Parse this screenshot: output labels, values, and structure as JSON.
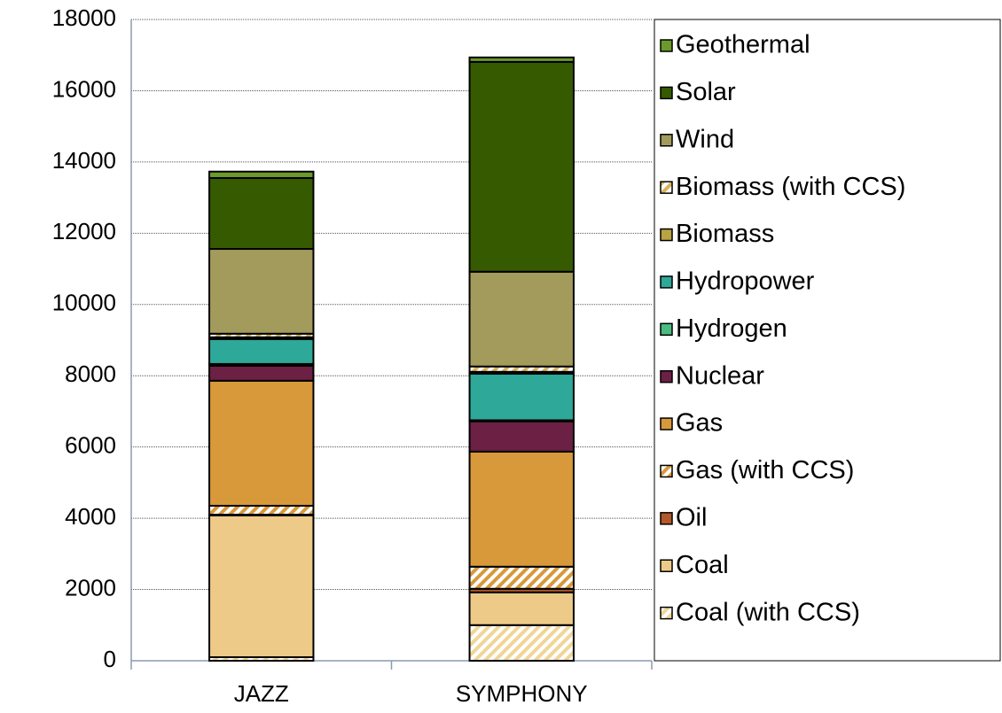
{
  "chart_data": {
    "type": "stacked_bar",
    "categories": [
      "JAZZ",
      "SYMPHONY"
    ],
    "ylim": [
      0,
      18000
    ],
    "yticks": [
      0,
      2000,
      4000,
      6000,
      8000,
      10000,
      12000,
      14000,
      16000,
      18000
    ],
    "grid": true,
    "legend": "right",
    "series": [
      {
        "name": "Coal (with CCS)",
        "color": "#f0d596",
        "hatch": true,
        "values": [
          100,
          1000
        ]
      },
      {
        "name": "Coal",
        "color": "#edca88",
        "values": [
          3980,
          920
        ]
      },
      {
        "name": "Oil",
        "color": "#b3582a",
        "values": [
          20,
          100
        ]
      },
      {
        "name": "Gas (with CCS)",
        "color": "#d8993a",
        "hatch": true,
        "values": [
          250,
          620
        ]
      },
      {
        "name": "Gas",
        "color": "#d8993a",
        "values": [
          3510,
          3230
        ]
      },
      {
        "name": "Nuclear",
        "color": "#6b2044",
        "values": [
          420,
          850
        ]
      },
      {
        "name": "Hydrogen",
        "color": "#4cbb7f",
        "values": [
          50,
          30
        ]
      },
      {
        "name": "Hydropower",
        "color": "#2ea898",
        "values": [
          700,
          1310
        ]
      },
      {
        "name": "Biomass",
        "color": "#b9a344",
        "values": [
          50,
          50
        ]
      },
      {
        "name": "Biomass (with CCS)",
        "color": "#d9b25a",
        "hatch": true,
        "values": [
          100,
          150
        ]
      },
      {
        "name": "Wind",
        "color": "#a39b5c",
        "values": [
          2380,
          2660
        ]
      },
      {
        "name": "Solar",
        "color": "#365a00",
        "values": [
          1990,
          5890
        ]
      },
      {
        "name": "Geothermal",
        "color": "#6b9a2a",
        "values": [
          180,
          125
        ]
      }
    ]
  }
}
